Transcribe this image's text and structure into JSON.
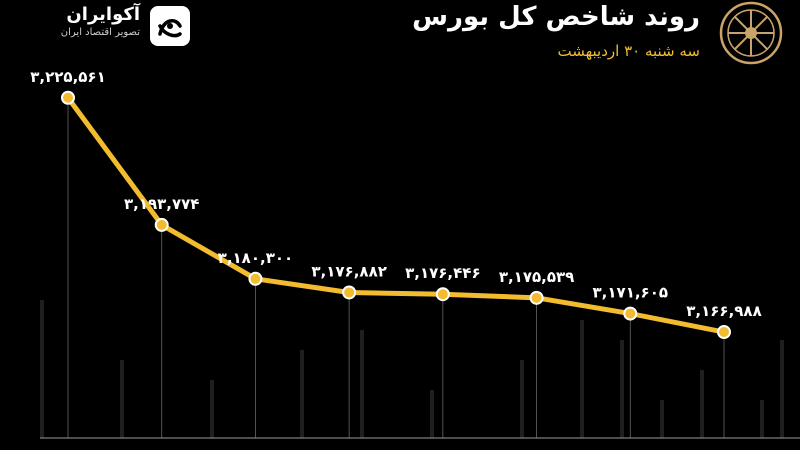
{
  "brand": {
    "name": "آکوایران",
    "tagline": "تصویر اقتصاد ایران",
    "logo_icon": "akoiran-logo-icon",
    "seal_icon": "stock-exchange-seal-icon"
  },
  "header": {
    "title": "روند شاخص کل بورس",
    "subtitle": "سه شنبه ۳۰ اردیبهشت"
  },
  "colors": {
    "background": "#000000",
    "line": "#f3bc2e",
    "accent": "#f3bc2e",
    "gridline": "#666666",
    "background_bars": "#1f1f1f"
  },
  "chart_data": {
    "type": "line",
    "title": "روند شاخص کل بورس",
    "subtitle": "سه شنبه ۳۰ اردیبهشت",
    "series": [
      {
        "values": [
          3225561,
          3193774,
          3180300,
          3176882,
          3176446,
          3175539,
          3171605,
          3166988
        ],
        "labels": [
          "۳,۲۲۵,۵۶۱",
          "۳,۱۹۳,۷۷۴",
          "۳,۱۸۰,۳۰۰",
          "۳,۱۷۶,۸۸۲",
          "۳,۱۷۶,۴۴۶",
          "۳,۱۷۵,۵۳۹",
          "۳,۱۷۱,۶۰۵",
          "۳,۱۶۶,۹۸۸"
        ]
      }
    ],
    "ylim": [
      3140000,
      3240000
    ],
    "grid": "vertical drop lines",
    "legend": "none"
  }
}
